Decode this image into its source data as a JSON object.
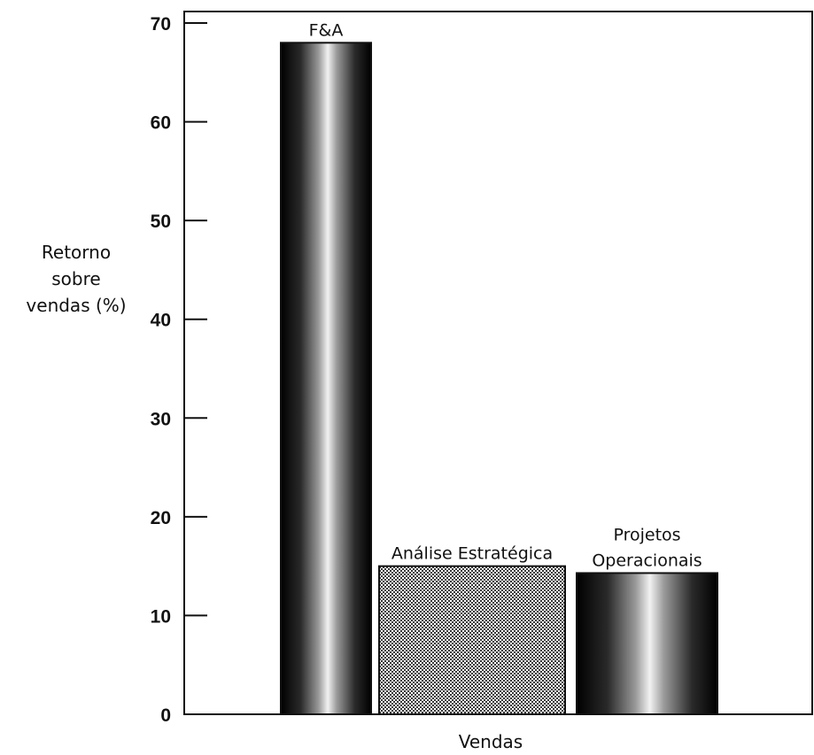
{
  "chart_data": {
    "type": "bar",
    "title": "",
    "xlabel": "Vendas",
    "ylabel": [
      "Retorno",
      "sobre",
      "vendas (%)"
    ],
    "ylim": [
      0,
      70
    ],
    "yticks": [
      0,
      10,
      20,
      30,
      40,
      50,
      60,
      70
    ],
    "grid": false,
    "categories": [
      "F&A",
      "Análise Estratégica",
      "Projetos Operacionais"
    ],
    "category_label_lines": [
      [
        "F&A"
      ],
      [
        "Análise Estratégica"
      ],
      [
        "Projetos",
        "Operacionais"
      ]
    ],
    "values": [
      68,
      15,
      14.3
    ],
    "fills": [
      "metallic-gradient",
      "crosshatch",
      "metallic-gradient"
    ]
  }
}
